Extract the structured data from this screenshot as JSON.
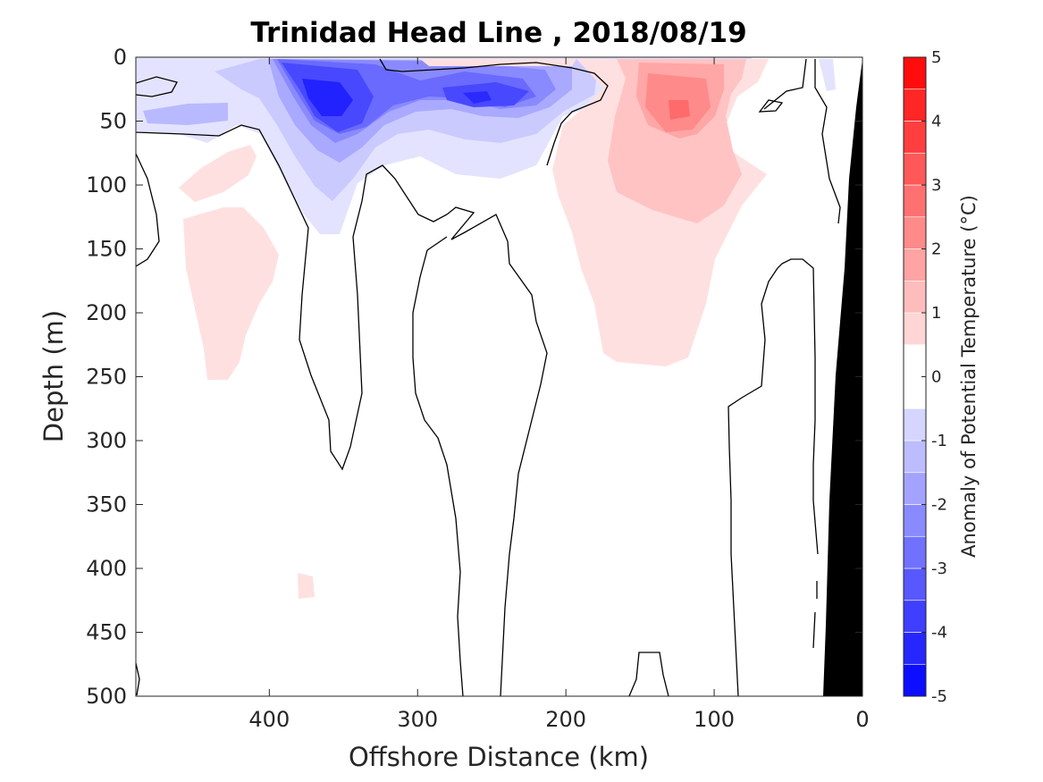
{
  "chart_data": {
    "type": "heatmap",
    "title": "Trinidad Head Line , 2018/08/19",
    "xlabel": "Offshore Distance (km)",
    "ylabel": "Depth (m)",
    "xlim": [
      490,
      0
    ],
    "x_reversed": true,
    "ylim": [
      0,
      500
    ],
    "y_reversed": true,
    "xticks": [
      400,
      300,
      200,
      100,
      0
    ],
    "yticks": [
      0,
      50,
      100,
      150,
      200,
      250,
      300,
      350,
      400,
      450,
      500
    ],
    "grid": false,
    "colorbar": {
      "label": "Anomaly of Potential Temperature (°C)",
      "range": [
        -5,
        5
      ],
      "step": 0.5,
      "ticks": [
        5,
        4,
        3,
        2,
        1,
        0,
        -1,
        -2,
        -3,
        -4,
        -5
      ],
      "negative_color": "#0000ff",
      "positive_color": "#ff0000",
      "zero_color": "#ffffff"
    },
    "zero_contour_color": "#000000",
    "bathymetry_color": "#000000",
    "anomaly_features": [
      {
        "x": 355,
        "y": 35,
        "value": -4.0
      },
      {
        "x": 260,
        "y": 35,
        "value": -3.0
      },
      {
        "x": 430,
        "y": 45,
        "value": -1.0
      },
      {
        "x": 125,
        "y": 40,
        "value": 2.5
      },
      {
        "x": 445,
        "y": 190,
        "value": 0.7
      },
      {
        "x": 150,
        "y": 170,
        "value": 0.7
      },
      {
        "x": 20,
        "y": 20,
        "value": -0.6
      },
      {
        "x": 365,
        "y": 410,
        "value": 0.6
      }
    ]
  }
}
